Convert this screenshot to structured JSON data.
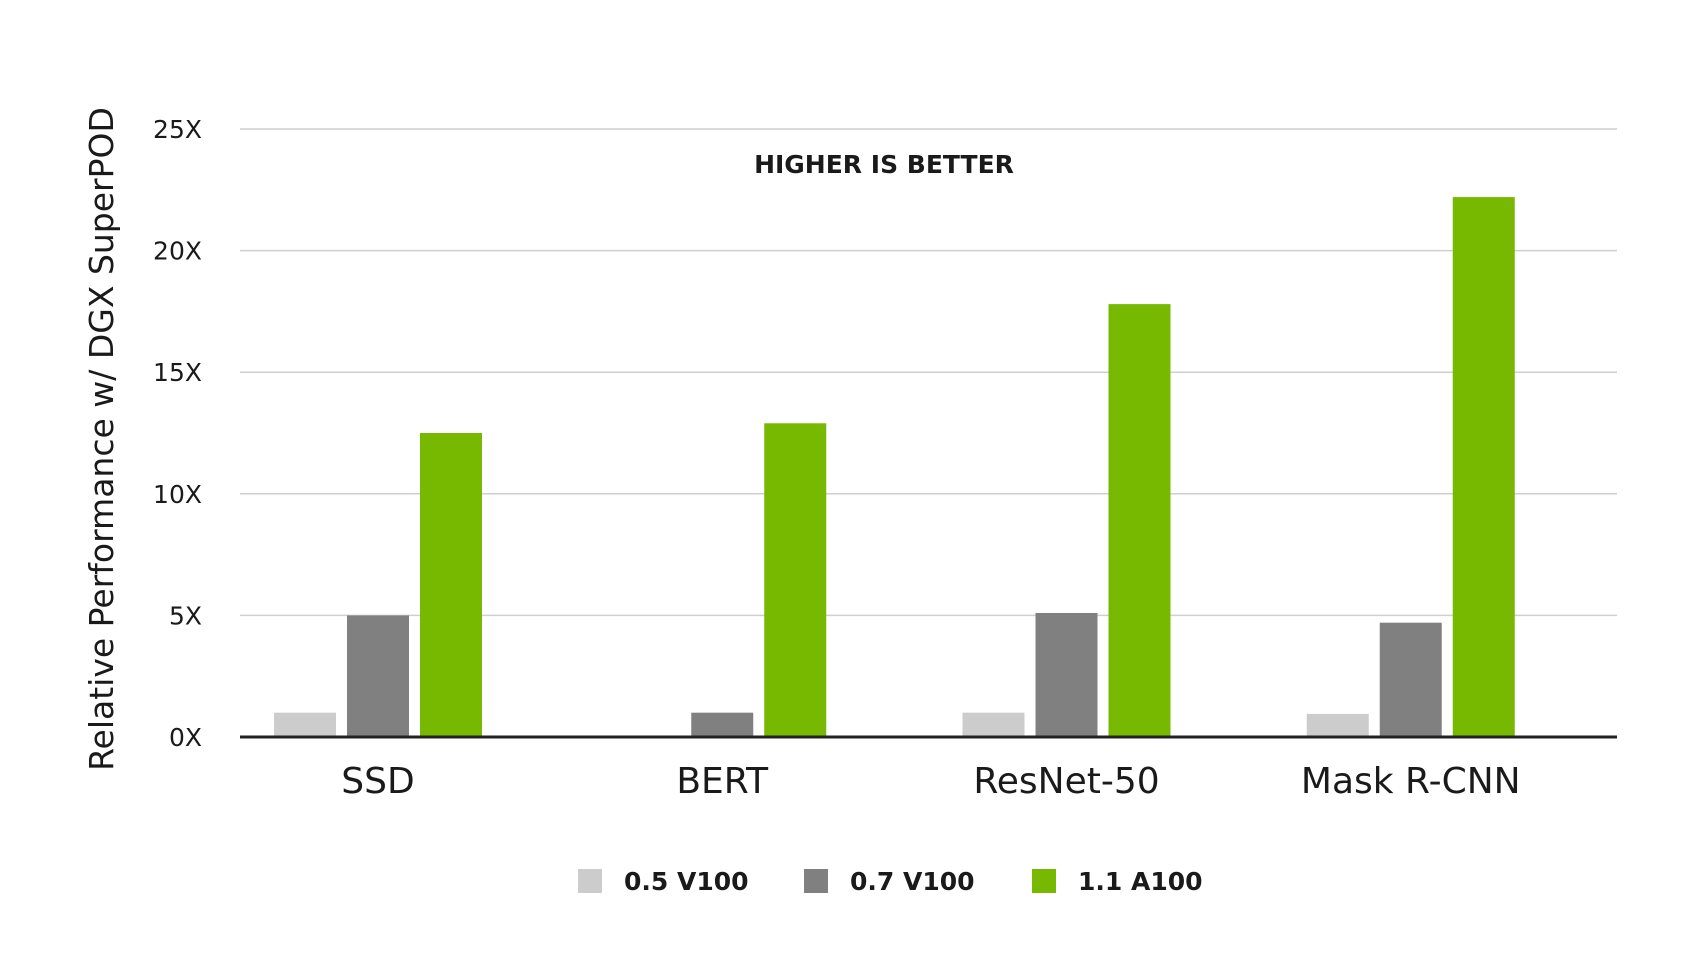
{
  "chart_data": {
    "type": "bar",
    "ylabel": "Relative Performance w/ DGX SuperPOD",
    "xlabel": "",
    "annotation": "HIGHER IS BETTER",
    "categories": [
      "SSD",
      "BERT",
      "ResNet-50",
      "Mask R-CNN"
    ],
    "ylim": [
      0,
      25
    ],
    "yticks": [
      0,
      5,
      10,
      15,
      20,
      25
    ],
    "ytick_labels": [
      "0X",
      "5X",
      "10X",
      "15X",
      "20X",
      "25X"
    ],
    "grid": true,
    "legend_position": "bottom-center",
    "series": [
      {
        "name": "0.5 V100",
        "color": "#cccccc",
        "values": [
          1.0,
          null,
          1.0,
          0.95
        ]
      },
      {
        "name": "0.7 V100",
        "color": "#808080",
        "values": [
          5.0,
          1.0,
          5.1,
          4.7
        ]
      },
      {
        "name": "1.1 A100",
        "color": "#76b900",
        "values": [
          12.5,
          12.9,
          17.8,
          22.2
        ]
      }
    ]
  }
}
